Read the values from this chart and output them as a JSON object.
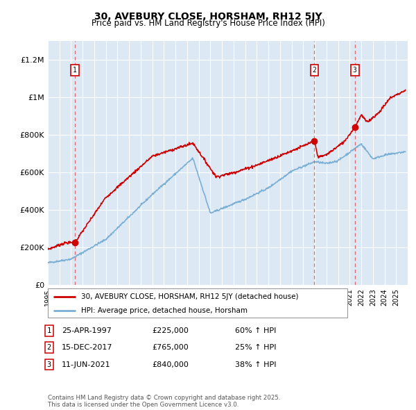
{
  "title": "30, AVEBURY CLOSE, HORSHAM, RH12 5JY",
  "subtitle": "Price paid vs. HM Land Registry's House Price Index (HPI)",
  "background_color": "#dce9f5",
  "plot_bg_color": "#dce9f5",
  "red_line_color": "#cc0000",
  "blue_line_color": "#7bafd4",
  "dashed_line_color": "#e05050",
  "sale_marker_color": "#cc0000",
  "ylim": [
    0,
    1300000
  ],
  "yticks": [
    0,
    200000,
    400000,
    600000,
    800000,
    1000000,
    1200000
  ],
  "ytick_labels": [
    "£0",
    "£200K",
    "£400K",
    "£600K",
    "£800K",
    "£1M",
    "£1.2M"
  ],
  "xstart": 1995,
  "xend": 2026,
  "sales": [
    {
      "year": 1997.31,
      "price": 225000,
      "label": "1"
    },
    {
      "year": 2017.96,
      "price": 765000,
      "label": "2"
    },
    {
      "year": 2021.44,
      "price": 840000,
      "label": "3"
    }
  ],
  "legend_entries": [
    "30, AVEBURY CLOSE, HORSHAM, RH12 5JY (detached house)",
    "HPI: Average price, detached house, Horsham"
  ],
  "table_rows": [
    {
      "num": "1",
      "date": "25-APR-1997",
      "price": "£225,000",
      "hpi": "60% ↑ HPI"
    },
    {
      "num": "2",
      "date": "15-DEC-2017",
      "price": "£765,000",
      "hpi": "25% ↑ HPI"
    },
    {
      "num": "3",
      "date": "11-JUN-2021",
      "price": "£840,000",
      "hpi": "38% ↑ HPI"
    }
  ],
  "footnote": "Contains HM Land Registry data © Crown copyright and database right 2025.\nThis data is licensed under the Open Government Licence v3.0."
}
